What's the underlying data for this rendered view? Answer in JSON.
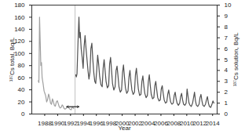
{
  "chart_data": {
    "type": "line",
    "xlabel": "Year",
    "ylabel": "¹³⁷Cs total, Bq/L",
    "y2label": "¹³⁷Cs solution, Bq/L",
    "xlim": [
      1986,
      2014.7
    ],
    "xticks": [
      1988,
      1990,
      1992,
      1994,
      1996,
      1998,
      2000,
      2002,
      2004,
      2006,
      2008,
      2010,
      2012,
      2014
    ],
    "ylim": [
      0,
      180
    ],
    "yticks": [
      0,
      20,
      40,
      60,
      80,
      100,
      120,
      140,
      160,
      180
    ],
    "y2lim": [
      0,
      10
    ],
    "y2ticks": [
      0,
      1,
      2,
      3,
      4,
      5,
      6,
      7,
      8,
      9,
      10
    ],
    "vline": 1992.7,
    "arrow": {
      "x": [
        1991.4,
        1993.3
      ],
      "y": 12
    },
    "series": [
      {
        "axis": "y",
        "color": "#a0a0a0",
        "x": [
          1987.0,
          1987.1,
          1987.2,
          1987.3,
          1987.4,
          1987.5,
          1987.6,
          1987.75,
          1987.9,
          1988.0,
          1988.15,
          1988.3,
          1988.45,
          1988.6,
          1988.75,
          1988.9,
          1989.05,
          1989.2,
          1989.35,
          1989.5,
          1989.65,
          1989.8,
          1989.95,
          1990.1,
          1990.25,
          1990.4,
          1990.55,
          1990.7,
          1990.85,
          1991.0,
          1991.15,
          1991.3,
          1991.5,
          1991.7,
          1991.9,
          1992.1,
          1992.3,
          1992.5
        ],
        "values": [
          55,
          52,
          160,
          120,
          80,
          85,
          60,
          50,
          38,
          35,
          30,
          20,
          24,
          33,
          27,
          18,
          16,
          25,
          20,
          14,
          13,
          20,
          22,
          17,
          12,
          10,
          11,
          15,
          13,
          9,
          8,
          9,
          12,
          11,
          8,
          7,
          12,
          9
        ]
      },
      {
        "axis": "y2",
        "color": "#505050",
        "x": [
          1992.8,
          1992.9,
          1993.0,
          1993.15,
          1993.3,
          1993.4,
          1993.5,
          1993.65,
          1993.8,
          1993.95,
          1994.1,
          1994.25,
          1994.4,
          1994.55,
          1994.7,
          1994.85,
          1995.0,
          1995.15,
          1995.3,
          1995.45,
          1995.6,
          1995.75,
          1995.9,
          1996.05,
          1996.2,
          1996.35,
          1996.5,
          1996.7,
          1996.9,
          1997.05,
          1997.2,
          1997.35,
          1997.5,
          1997.7,
          1997.9,
          1998.05,
          1998.2,
          1998.35,
          1998.5,
          1998.7,
          1998.9,
          1999.05,
          1999.2,
          1999.35,
          1999.5,
          1999.7,
          1999.9,
          2000.05,
          2000.2,
          2000.35,
          2000.5,
          2000.7,
          2000.9,
          2001.05,
          2001.2,
          2001.35,
          2001.5,
          2001.7,
          2001.9,
          2002.05,
          2002.2,
          2002.35,
          2002.5,
          2002.7,
          2002.9,
          2003.05,
          2003.2,
          2003.35,
          2003.5,
          2003.7,
          2003.9,
          2004.05,
          2004.2,
          2004.35,
          2004.5,
          2004.7,
          2004.9,
          2005.05,
          2005.2,
          2005.35,
          2005.5,
          2005.7,
          2005.9,
          2006.05,
          2006.2,
          2006.35,
          2006.5,
          2006.7,
          2006.9,
          2007.05,
          2007.2,
          2007.35,
          2007.5,
          2007.7,
          2007.9,
          2008.05,
          2008.2,
          2008.35,
          2008.5,
          2008.7,
          2008.9,
          2009.05,
          2009.2,
          2009.35,
          2009.5,
          2009.7,
          2009.9,
          2010.05,
          2010.2,
          2010.35,
          2010.5,
          2010.7,
          2010.9,
          2011.05,
          2011.2,
          2011.35,
          2011.5,
          2011.7,
          2011.9,
          2012.05,
          2012.2,
          2012.35,
          2012.5,
          2012.7,
          2012.9,
          2013.05,
          2013.2,
          2013.35,
          2013.5,
          2013.7,
          2013.9,
          2014.05,
          2014.2
        ],
        "values": [
          3.6,
          3.4,
          3.7,
          6.5,
          8.9,
          7.0,
          7.5,
          6.0,
          5.2,
          4.2,
          6.2,
          7.2,
          6.0,
          5.0,
          4.0,
          3.2,
          3.8,
          6.0,
          6.5,
          5.0,
          3.8,
          3.0,
          2.8,
          4.0,
          5.4,
          4.6,
          3.5,
          2.7,
          2.5,
          4.2,
          5.0,
          4.0,
          3.0,
          2.4,
          2.6,
          4.6,
          5.2,
          4.0,
          2.8,
          2.2,
          2.5,
          4.0,
          4.4,
          3.5,
          2.5,
          2.0,
          2.2,
          3.8,
          4.5,
          3.4,
          2.4,
          1.9,
          2.1,
          3.4,
          4.0,
          3.0,
          2.2,
          1.8,
          2.0,
          3.6,
          4.2,
          3.2,
          2.3,
          1.7,
          1.8,
          3.0,
          3.5,
          2.6,
          1.9,
          1.5,
          1.7,
          3.0,
          3.6,
          2.6,
          1.8,
          1.4,
          1.5,
          2.6,
          3.0,
          2.2,
          1.5,
          1.2,
          1.3,
          2.3,
          2.6,
          1.9,
          1.3,
          1.0,
          1.1,
          1.8,
          2.2,
          1.6,
          1.1,
          0.9,
          1.0,
          1.7,
          2.0,
          1.4,
          1.0,
          0.8,
          1.0,
          1.6,
          1.9,
          1.3,
          0.9,
          0.8,
          1.0,
          2.3,
          1.6,
          1.0,
          0.8,
          0.7,
          1.0,
          1.5,
          2.0,
          1.2,
          0.8,
          0.7,
          0.9,
          1.5,
          1.8,
          1.2,
          0.8,
          0.7,
          0.9,
          1.3,
          1.6,
          1.0,
          0.7,
          0.6,
          0.9,
          1.2,
          1.0
        ]
      }
    ]
  }
}
